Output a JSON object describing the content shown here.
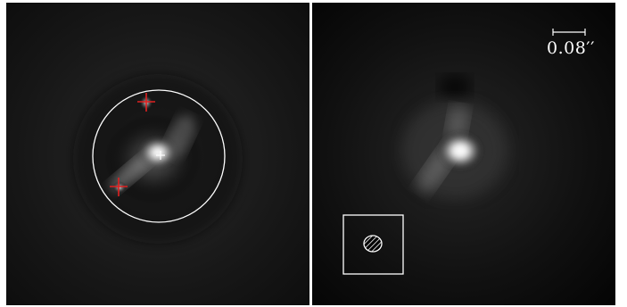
{
  "left_panel": {
    "markers": [
      "red-cross-upper",
      "red-cross-lower",
      "white-center-cross"
    ],
    "aperture": "circle"
  },
  "right_panel": {
    "scale_bar_label": "0.08′′",
    "beam_inset": "hatched-ellipse"
  },
  "colors": {
    "background": "#000000",
    "source_core": "#ffffff",
    "marker": "#e02020",
    "overlay": "#ffffff"
  }
}
